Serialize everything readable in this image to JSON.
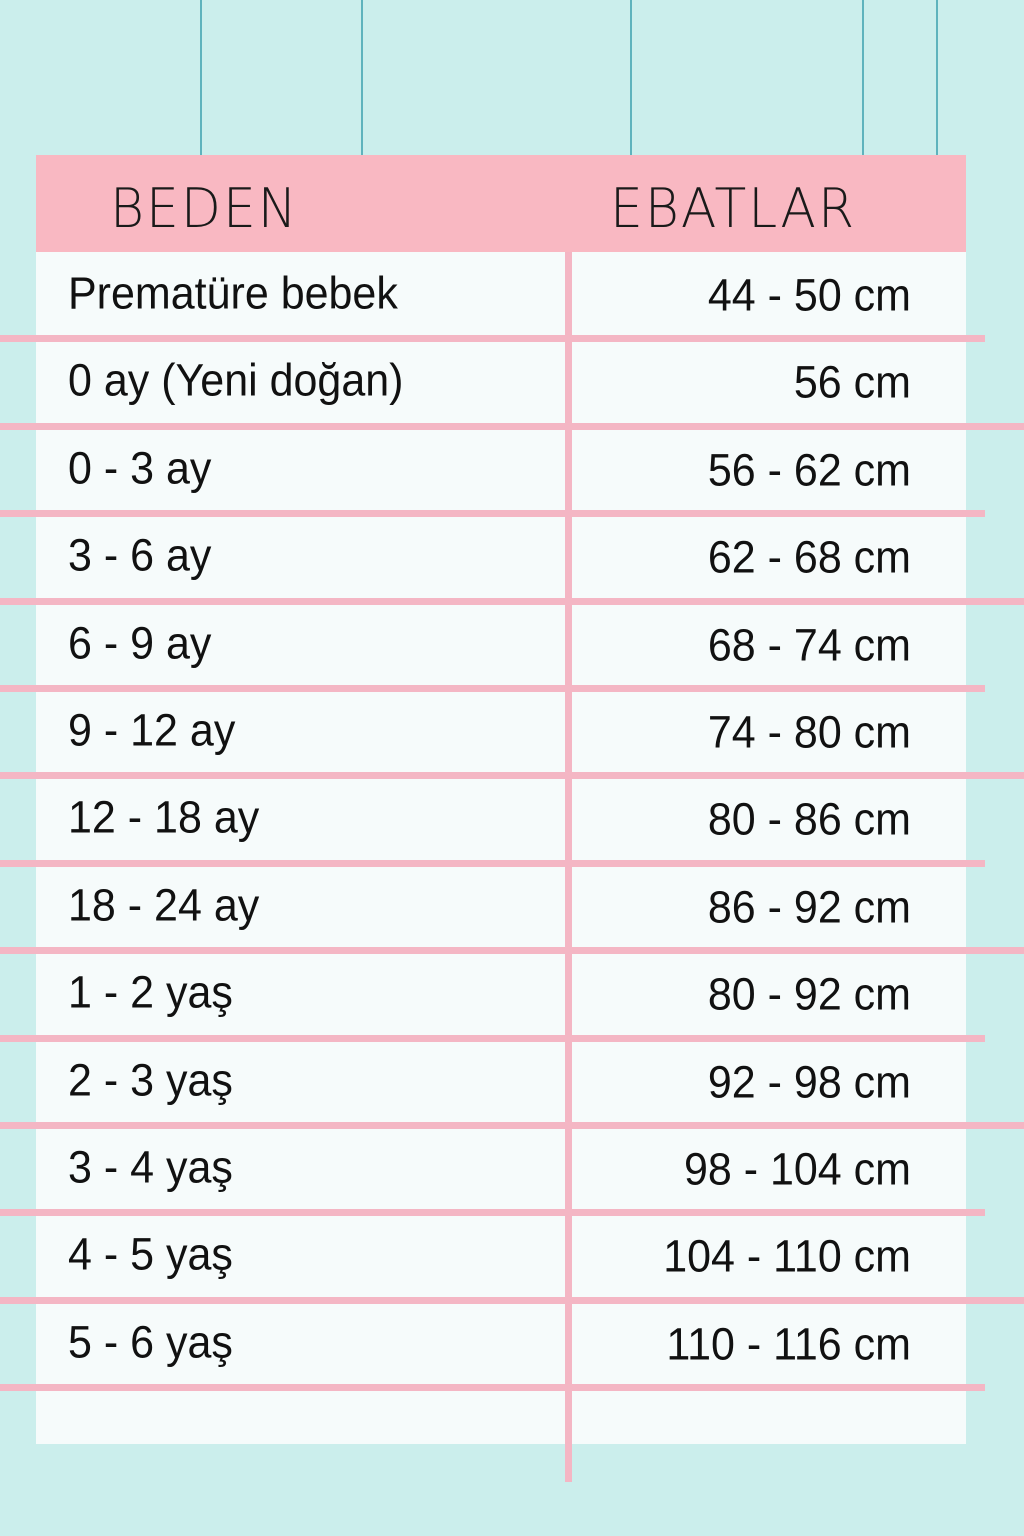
{
  "colors": {
    "background": "#cbeeec",
    "header": "#f9b8c2",
    "lines": "#f4b6c4",
    "panel": "#f6fbfb"
  },
  "header": {
    "size_label": "BEDEN",
    "dimension_label": "EBATLAR"
  },
  "rows": [
    {
      "size": "Prematüre bebek",
      "dimension": "44 - 50 cm"
    },
    {
      "size": "0 ay (Yeni doğan)",
      "dimension": "56 cm"
    },
    {
      "size": "0 - 3 ay",
      "dimension": "56 - 62 cm"
    },
    {
      "size": "3 - 6 ay",
      "dimension": "62 - 68 cm"
    },
    {
      "size": "6 - 9 ay",
      "dimension": "68 - 74 cm"
    },
    {
      "size": "9 - 12 ay",
      "dimension": "74 - 80 cm"
    },
    {
      "size": "12 - 18 ay",
      "dimension": "80 - 86 cm"
    },
    {
      "size": "18 - 24 ay",
      "dimension": "86 - 92 cm"
    },
    {
      "size": "1 - 2 yaş",
      "dimension": "80 - 92 cm"
    },
    {
      "size": "2 - 3 yaş",
      "dimension": "92 - 98 cm"
    },
    {
      "size": "3 - 4 yaş",
      "dimension": "98 - 104 cm"
    },
    {
      "size": "4 - 5 yaş",
      "dimension": "104 - 110 cm"
    },
    {
      "size": "5 - 6 yaş",
      "dimension": "110 - 116 cm"
    }
  ]
}
